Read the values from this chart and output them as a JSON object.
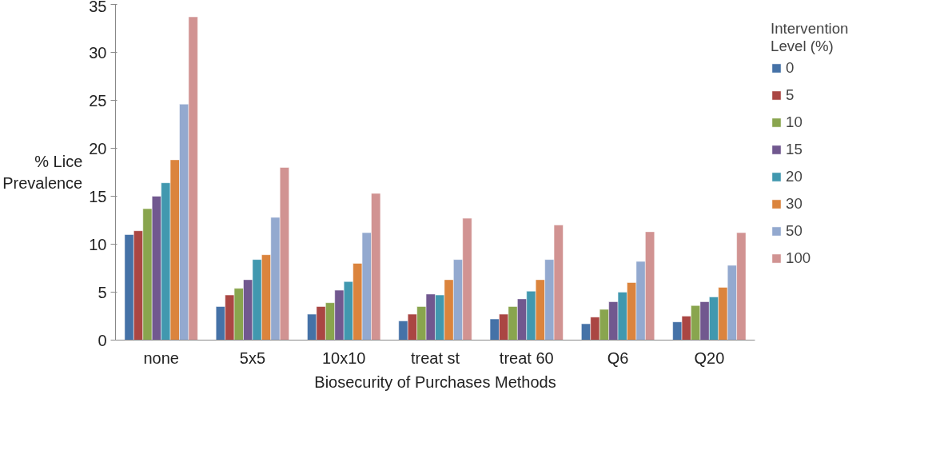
{
  "chart_data": {
    "type": "bar",
    "xlabel": "Biosecurity of Purchases Methods",
    "ylabel": "% Lice Prevalence",
    "legend_title": "Intervention Level (%)",
    "legend": "right",
    "grid": false,
    "categories": [
      "none",
      "5x5",
      "10x10",
      "treat st",
      "treat 60",
      "Q6",
      "Q20"
    ],
    "ylim": [
      0,
      35
    ],
    "yticks": [
      0,
      5,
      10,
      15,
      20,
      25,
      30,
      35
    ],
    "series": [
      {
        "name": "0",
        "color": "#4572a7",
        "values": [
          11.0,
          3.5,
          2.7,
          2.0,
          2.2,
          1.7,
          1.9
        ]
      },
      {
        "name": "5",
        "color": "#aa4643",
        "values": [
          11.4,
          4.7,
          3.5,
          2.7,
          2.7,
          2.4,
          2.5
        ]
      },
      {
        "name": "10",
        "color": "#89a54e",
        "values": [
          13.7,
          5.4,
          3.9,
          3.5,
          3.5,
          3.2,
          3.6
        ]
      },
      {
        "name": "15",
        "color": "#71588f",
        "values": [
          15.0,
          6.3,
          5.2,
          4.8,
          4.3,
          4.0,
          4.0
        ]
      },
      {
        "name": "20",
        "color": "#4198af",
        "values": [
          16.4,
          8.4,
          6.1,
          4.7,
          5.1,
          5.0,
          4.5
        ]
      },
      {
        "name": "30",
        "color": "#db843d",
        "values": [
          18.8,
          8.9,
          8.0,
          6.3,
          6.3,
          6.0,
          5.5
        ]
      },
      {
        "name": "50",
        "color": "#93a9cf",
        "values": [
          24.6,
          12.8,
          11.2,
          8.4,
          8.4,
          8.2,
          7.8
        ]
      },
      {
        "name": "100",
        "color": "#d19392",
        "values": [
          33.7,
          18.0,
          15.3,
          12.7,
          12.0,
          11.3,
          11.2
        ]
      }
    ]
  }
}
